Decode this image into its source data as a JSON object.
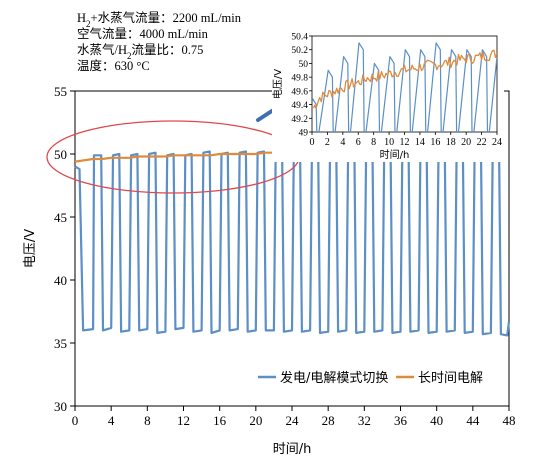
{
  "chart_data": [
    {
      "id": "main",
      "type": "line",
      "xlabel": "时间/h",
      "ylabel": "电压/V",
      "xlim": [
        0,
        48
      ],
      "ylim": [
        30,
        55
      ],
      "xticks": [
        0,
        4,
        8,
        12,
        16,
        20,
        24,
        28,
        32,
        36,
        40,
        44,
        48
      ],
      "yticks": [
        30,
        35,
        40,
        45,
        50,
        55
      ],
      "grid": false,
      "legend_position": "bottom-right",
      "series": [
        {
          "name": "发电/电解模式切换",
          "color": "#5b8fc6",
          "pattern": "square-wave",
          "cycle_hours": 2,
          "mode_switch_points": [
            [
              0.0,
              49.0
            ],
            [
              0.5,
              48.8
            ],
            [
              0.9,
              36.0
            ],
            [
              2.0,
              36.1
            ],
            [
              2.1,
              49.9
            ],
            [
              2.9,
              49.9
            ],
            [
              3.1,
              36.0
            ],
            [
              4.0,
              36.2
            ],
            [
              4.2,
              49.9
            ],
            [
              4.9,
              50.0
            ],
            [
              5.1,
              35.9
            ],
            [
              6.0,
              36.0
            ],
            [
              6.2,
              49.9
            ],
            [
              6.9,
              50.0
            ],
            [
              7.1,
              36.0
            ],
            [
              8.0,
              36.1
            ],
            [
              8.2,
              50.0
            ],
            [
              8.9,
              50.1
            ],
            [
              9.1,
              35.8
            ],
            [
              10.0,
              35.9
            ],
            [
              10.2,
              49.9
            ],
            [
              10.9,
              50.0
            ],
            [
              11.1,
              36.1
            ],
            [
              12.0,
              36.2
            ],
            [
              12.2,
              49.9
            ],
            [
              12.9,
              50.0
            ],
            [
              13.1,
              35.9
            ],
            [
              14.0,
              36.0
            ],
            [
              14.2,
              50.1
            ],
            [
              14.9,
              50.2
            ],
            [
              15.1,
              35.8
            ],
            [
              16.0,
              36.0
            ],
            [
              16.2,
              50.0
            ],
            [
              16.9,
              50.1
            ],
            [
              17.1,
              36.0
            ],
            [
              18.0,
              36.1
            ],
            [
              18.2,
              50.1
            ],
            [
              18.9,
              50.2
            ],
            [
              19.1,
              35.9
            ],
            [
              20.0,
              36.0
            ],
            [
              20.2,
              50.1
            ],
            [
              20.9,
              50.2
            ],
            [
              21.1,
              36.0
            ],
            [
              22.0,
              36.0
            ],
            [
              22.2,
              50.2
            ],
            [
              22.9,
              50.2
            ],
            [
              23.1,
              35.9
            ],
            [
              24.0,
              36.0
            ],
            [
              24.2,
              50.1
            ],
            [
              24.9,
              50.1
            ],
            [
              25.1,
              35.9
            ],
            [
              26.0,
              36.0
            ],
            [
              26.2,
              50.1
            ],
            [
              26.9,
              50.2
            ],
            [
              27.1,
              35.8
            ],
            [
              28.0,
              35.9
            ],
            [
              28.2,
              50.1
            ],
            [
              28.9,
              50.2
            ],
            [
              29.1,
              35.9
            ],
            [
              30.0,
              36.0
            ],
            [
              30.2,
              50.2
            ],
            [
              30.9,
              50.2
            ],
            [
              31.1,
              35.8
            ],
            [
              32.0,
              35.9
            ],
            [
              32.2,
              50.1
            ],
            [
              32.9,
              50.2
            ],
            [
              33.1,
              35.9
            ],
            [
              34.0,
              36.0
            ],
            [
              34.2,
              50.2
            ],
            [
              34.9,
              50.2
            ],
            [
              35.1,
              35.8
            ],
            [
              36.0,
              35.9
            ],
            [
              36.2,
              50.1
            ],
            [
              36.9,
              50.2
            ],
            [
              37.1,
              35.9
            ],
            [
              38.0,
              36.0
            ],
            [
              38.2,
              50.2
            ],
            [
              38.9,
              50.2
            ],
            [
              39.1,
              35.8
            ],
            [
              40.0,
              35.9
            ],
            [
              40.2,
              50.2
            ],
            [
              40.9,
              50.2
            ],
            [
              41.1,
              35.9
            ],
            [
              42.0,
              36.0
            ],
            [
              42.2,
              50.2
            ],
            [
              42.9,
              50.2
            ],
            [
              43.1,
              35.8
            ],
            [
              44.0,
              35.9
            ],
            [
              44.2,
              50.2
            ],
            [
              44.9,
              50.2
            ],
            [
              45.1,
              35.7
            ],
            [
              46.0,
              35.8
            ],
            [
              46.2,
              50.2
            ],
            [
              46.9,
              50.2
            ],
            [
              47.1,
              35.7
            ],
            [
              47.8,
              35.6
            ],
            [
              48.0,
              36.7
            ]
          ]
        },
        {
          "name": "长时间电解",
          "color": "#e08a3c",
          "points": [
            [
              0,
              49.4
            ],
            [
              1,
              49.5
            ],
            [
              2,
              49.6
            ],
            [
              3,
              49.6
            ],
            [
              4,
              49.7
            ],
            [
              5,
              49.7
            ],
            [
              6,
              49.7
            ],
            [
              7,
              49.8
            ],
            [
              8,
              49.8
            ],
            [
              9,
              49.8
            ],
            [
              10,
              49.8
            ],
            [
              11,
              49.9
            ],
            [
              12,
              49.9
            ],
            [
              13,
              49.9
            ],
            [
              14,
              49.9
            ],
            [
              15,
              49.9
            ],
            [
              16,
              50.0
            ],
            [
              17,
              50.0
            ],
            [
              18,
              50.0
            ],
            [
              19,
              50.0
            ],
            [
              20,
              50.0
            ],
            [
              21,
              50.1
            ],
            [
              22,
              50.1
            ],
            [
              23,
              50.1
            ],
            [
              24,
              50.1
            ]
          ]
        }
      ]
    },
    {
      "id": "inset",
      "type": "line",
      "xlabel": "时间/h",
      "ylabel": "电压/V",
      "xlim": [
        0,
        24
      ],
      "ylim": [
        49,
        50.4
      ],
      "xticks": [
        0,
        2,
        4,
        6,
        8,
        10,
        12,
        14,
        16,
        18,
        20,
        22,
        24
      ],
      "yticks": [
        49,
        49.2,
        49.4,
        49.6,
        49.8,
        50,
        50.2,
        50.4
      ],
      "grid": false,
      "series": [
        {
          "name": "发电/电解模式切换",
          "color": "#5b8fc6",
          "pattern": "square-wave-zoom",
          "peak_points": [
            [
              0,
              49.5
            ],
            [
              0.9,
              49.0
            ],
            [
              2.1,
              49.9
            ],
            [
              3.0,
              49.0
            ],
            [
              4.1,
              50.1
            ],
            [
              5.0,
              49.0
            ],
            [
              6.1,
              50.3
            ],
            [
              7.0,
              49.0
            ],
            [
              8.1,
              50.0
            ],
            [
              9.0,
              49.0
            ],
            [
              10.1,
              50.1
            ],
            [
              11.0,
              49.0
            ],
            [
              12.1,
              50.2
            ],
            [
              13.0,
              49.0
            ],
            [
              14.1,
              50.2
            ],
            [
              15.0,
              49.0
            ],
            [
              16.1,
              50.3
            ],
            [
              17.0,
              49.0
            ],
            [
              18.1,
              50.2
            ],
            [
              19.0,
              49.0
            ],
            [
              20.1,
              50.2
            ],
            [
              21.0,
              49.0
            ],
            [
              22.1,
              50.2
            ],
            [
              23.0,
              49.0
            ],
            [
              24.0,
              50.1
            ]
          ]
        },
        {
          "name": "长时间电解",
          "color": "#e08a3c",
          "points": [
            [
              0.2,
              49.35
            ],
            [
              1,
              49.5
            ],
            [
              2,
              49.55
            ],
            [
              3,
              49.6
            ],
            [
              4,
              49.65
            ],
            [
              5,
              49.7
            ],
            [
              6,
              49.72
            ],
            [
              7,
              49.78
            ],
            [
              8,
              49.8
            ],
            [
              9,
              49.82
            ],
            [
              10,
              49.85
            ],
            [
              11,
              49.88
            ],
            [
              12,
              49.9
            ],
            [
              13,
              49.92
            ],
            [
              14,
              49.95
            ],
            [
              15,
              49.97
            ],
            [
              16,
              49.98
            ],
            [
              17,
              50.0
            ],
            [
              18,
              50.02
            ],
            [
              19,
              50.05
            ],
            [
              20,
              50.07
            ],
            [
              21,
              50.08
            ],
            [
              22,
              50.1
            ],
            [
              23,
              50.12
            ],
            [
              24,
              50.15
            ]
          ]
        }
      ]
    }
  ],
  "conditions": [
    {
      "main": "H",
      "sub": "2",
      "rest": "+水蒸气流量：2200 mL/min"
    },
    {
      "main": "空气流量：4000 mL/min",
      "sub": "",
      "rest": ""
    },
    {
      "main": "水蒸气/H",
      "sub": "2",
      "rest": "流量比：0.75"
    },
    {
      "main": "温度：630 °C",
      "sub": "",
      "rest": ""
    }
  ],
  "colors": {
    "axis": "#000000",
    "highlight_ellipse": "#e0474c",
    "pointer_arrow": "#3f6fb0"
  }
}
